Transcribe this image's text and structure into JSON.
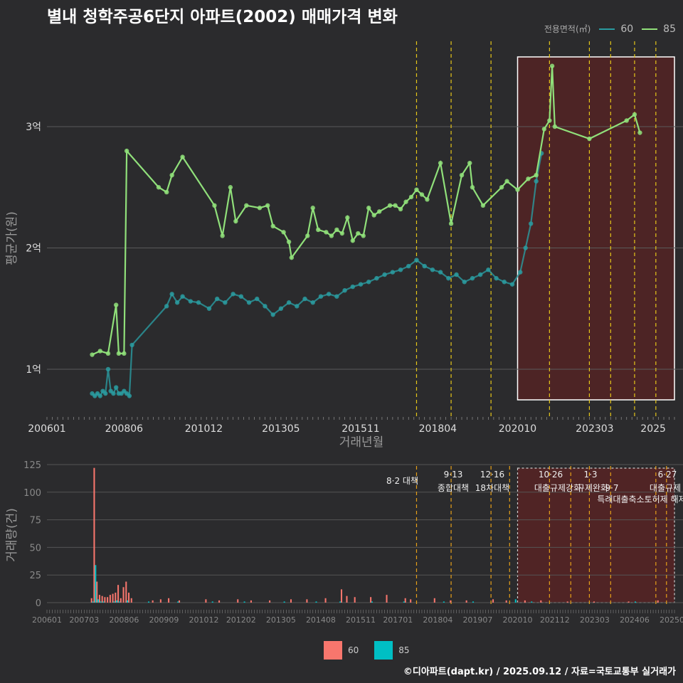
{
  "title": "별내 청학주공6단지 아파트(2002) 매매가격 변화",
  "legend_top": {
    "title": "전용면적(㎡)",
    "items": [
      {
        "label": "60",
        "color": "#2a9ba0"
      },
      {
        "label": "85",
        "color": "#90e07a"
      }
    ]
  },
  "legend_bottom": {
    "items": [
      {
        "label": "60",
        "color": "#f8766d"
      },
      {
        "label": "85",
        "color": "#00bfc4"
      }
    ]
  },
  "credit": "©디아파트(dapt.kr) / 2025.09.12 / 자료=국토교통부 실거래가",
  "chart_data": [
    {
      "type": "line",
      "xlabel": "거래년월",
      "ylabel": "평균가(원)",
      "x_range": [
        "2006-01",
        "2025-09"
      ],
      "ylim": [
        0.65,
        3.65
      ],
      "y_ticks": [
        {
          "v": 1,
          "label": "1억"
        },
        {
          "v": 2,
          "label": "2억"
        },
        {
          "v": 3,
          "label": "3억"
        }
      ],
      "x_ticks": [
        "200601",
        "200806",
        "201012",
        "201305",
        "201511",
        "201804",
        "202010",
        "202303",
        "2025"
      ],
      "policy_lines": [
        "2017-08",
        "2018-09",
        "2019-12",
        "2021-10",
        "2023-01",
        "2023-09",
        "2024-06",
        "2025-02"
      ],
      "highlight_box": {
        "from": "2020-10",
        "to": "2025-09"
      },
      "series": [
        {
          "name": "60",
          "color": "#2a9ba0",
          "points": [
            [
              "2007-06",
              0.8
            ],
            [
              "2007-07",
              0.78
            ],
            [
              "2007-08",
              0.8
            ],
            [
              "2007-09",
              0.78
            ],
            [
              "2007-10",
              0.82
            ],
            [
              "2007-11",
              0.8
            ],
            [
              "2007-12",
              1.0
            ],
            [
              "2008-01",
              0.82
            ],
            [
              "2008-02",
              0.8
            ],
            [
              "2008-03",
              0.85
            ],
            [
              "2008-04",
              0.8
            ],
            [
              "2008-05",
              0.8
            ],
            [
              "2008-06",
              0.82
            ],
            [
              "2008-07",
              0.8
            ],
            [
              "2008-08",
              0.78
            ],
            [
              "2008-09",
              1.2
            ],
            [
              "2009-10",
              1.52
            ],
            [
              "2009-12",
              1.62
            ],
            [
              "2010-02",
              1.55
            ],
            [
              "2010-04",
              1.6
            ],
            [
              "2010-07",
              1.56
            ],
            [
              "2010-10",
              1.55
            ],
            [
              "2011-02",
              1.5
            ],
            [
              "2011-05",
              1.58
            ],
            [
              "2011-08",
              1.55
            ],
            [
              "2011-11",
              1.62
            ],
            [
              "2012-02",
              1.6
            ],
            [
              "2012-05",
              1.55
            ],
            [
              "2012-08",
              1.58
            ],
            [
              "2012-11",
              1.52
            ],
            [
              "2013-02",
              1.45
            ],
            [
              "2013-05",
              1.5
            ],
            [
              "2013-08",
              1.55
            ],
            [
              "2013-11",
              1.52
            ],
            [
              "2014-02",
              1.58
            ],
            [
              "2014-05",
              1.55
            ],
            [
              "2014-08",
              1.6
            ],
            [
              "2014-11",
              1.62
            ],
            [
              "2015-02",
              1.6
            ],
            [
              "2015-05",
              1.65
            ],
            [
              "2015-08",
              1.68
            ],
            [
              "2015-11",
              1.7
            ],
            [
              "2016-02",
              1.72
            ],
            [
              "2016-05",
              1.75
            ],
            [
              "2016-08",
              1.78
            ],
            [
              "2016-11",
              1.8
            ],
            [
              "2017-02",
              1.82
            ],
            [
              "2017-05",
              1.85
            ],
            [
              "2017-08",
              1.9
            ],
            [
              "2017-11",
              1.85
            ],
            [
              "2018-02",
              1.82
            ],
            [
              "2018-05",
              1.8
            ],
            [
              "2018-08",
              1.75
            ],
            [
              "2018-11",
              1.78
            ],
            [
              "2019-02",
              1.72
            ],
            [
              "2019-05",
              1.75
            ],
            [
              "2019-08",
              1.78
            ],
            [
              "2019-11",
              1.82
            ],
            [
              "2020-02",
              1.75
            ],
            [
              "2020-05",
              1.72
            ],
            [
              "2020-08",
              1.7
            ],
            [
              "2020-11",
              1.8
            ],
            [
              "2021-01",
              2.0
            ],
            [
              "2021-03",
              2.2
            ],
            [
              "2021-05",
              2.55
            ],
            [
              "2021-07",
              2.78
            ]
          ]
        },
        {
          "name": "85",
          "color": "#90e07a",
          "points": [
            [
              "2007-06",
              1.12
            ],
            [
              "2007-09",
              1.15
            ],
            [
              "2007-12",
              1.13
            ],
            [
              "2008-03",
              1.53
            ],
            [
              "2008-04",
              1.13
            ],
            [
              "2008-06",
              1.13
            ],
            [
              "2008-07",
              2.8
            ],
            [
              "2009-07",
              2.5
            ],
            [
              "2009-10",
              2.46
            ],
            [
              "2009-12",
              2.6
            ],
            [
              "2010-04",
              2.75
            ],
            [
              "2011-04",
              2.35
            ],
            [
              "2011-07",
              2.1
            ],
            [
              "2011-10",
              2.5
            ],
            [
              "2011-12",
              2.22
            ],
            [
              "2012-04",
              2.35
            ],
            [
              "2012-09",
              2.33
            ],
            [
              "2012-12",
              2.35
            ],
            [
              "2013-02",
              2.18
            ],
            [
              "2013-06",
              2.13
            ],
            [
              "2013-08",
              2.05
            ],
            [
              "2013-09",
              1.92
            ],
            [
              "2014-03",
              2.1
            ],
            [
              "2014-05",
              2.33
            ],
            [
              "2014-07",
              2.15
            ],
            [
              "2014-10",
              2.13
            ],
            [
              "2014-12",
              2.1
            ],
            [
              "2015-02",
              2.15
            ],
            [
              "2015-04",
              2.12
            ],
            [
              "2015-06",
              2.25
            ],
            [
              "2015-08",
              2.06
            ],
            [
              "2015-10",
              2.12
            ],
            [
              "2015-12",
              2.1
            ],
            [
              "2016-02",
              2.33
            ],
            [
              "2016-04",
              2.27
            ],
            [
              "2016-06",
              2.3
            ],
            [
              "2016-10",
              2.35
            ],
            [
              "2016-12",
              2.35
            ],
            [
              "2017-02",
              2.32
            ],
            [
              "2017-04",
              2.38
            ],
            [
              "2017-06",
              2.42
            ],
            [
              "2017-08",
              2.48
            ],
            [
              "2017-10",
              2.44
            ],
            [
              "2017-12",
              2.4
            ],
            [
              "2018-05",
              2.7
            ],
            [
              "2018-09",
              2.2
            ],
            [
              "2019-01",
              2.6
            ],
            [
              "2019-04",
              2.7
            ],
            [
              "2019-05",
              2.5
            ],
            [
              "2019-09",
              2.35
            ],
            [
              "2020-04",
              2.5
            ],
            [
              "2020-06",
              2.55
            ],
            [
              "2020-10",
              2.48
            ],
            [
              "2021-02",
              2.57
            ],
            [
              "2021-05",
              2.6
            ],
            [
              "2021-08",
              2.98
            ],
            [
              "2021-10",
              3.05
            ],
            [
              "2021-11",
              3.5
            ],
            [
              "2021-12",
              3.0
            ],
            [
              "2023-01",
              2.9
            ],
            [
              "2024-03",
              3.05
            ],
            [
              "2024-06",
              3.1
            ],
            [
              "2024-08",
              2.95
            ]
          ]
        }
      ]
    },
    {
      "type": "bar",
      "ylabel": "거래량(건)",
      "ylim": [
        0,
        125
      ],
      "y_ticks": [
        0,
        25,
        50,
        75,
        100,
        125
      ],
      "x_ticks": [
        "200601",
        "200703",
        "200806",
        "200909",
        "201012",
        "201202",
        "201305",
        "201408",
        "201511",
        "201701",
        "201804",
        "201907",
        "202010",
        "202112",
        "202303",
        "202406",
        "202509"
      ],
      "policy_lines": [
        "2017-08",
        "2018-09",
        "2019-12",
        "2020-07",
        "2021-10",
        "2022-06",
        "2023-01",
        "2023-09",
        "2025-02",
        "2025-06"
      ],
      "annotations": [
        "8·2 대책",
        "9·13",
        "종합대책",
        "12·16",
        "18차대책",
        "10·26",
        "대출규제강화",
        "1·3",
        "규제완화",
        "9·7",
        "특례대출축소토허제 해제",
        "6·27",
        "대출규제"
      ],
      "highlight_box": {
        "from": "2020-10",
        "to": "2025-09"
      },
      "series": [
        {
          "name": "60",
          "color": "#f8766d",
          "points": [
            [
              "2007-06",
              4
            ],
            [
              "2007-07",
              122
            ],
            [
              "2007-08",
              19
            ],
            [
              "2007-09",
              7
            ],
            [
              "2007-10",
              6
            ],
            [
              "2007-11",
              5
            ],
            [
              "2007-12",
              5
            ],
            [
              "2008-01",
              7
            ],
            [
              "2008-02",
              8
            ],
            [
              "2008-03",
              9
            ],
            [
              "2008-04",
              16
            ],
            [
              "2008-05",
              4
            ],
            [
              "2008-06",
              14
            ],
            [
              "2008-07",
              19
            ],
            [
              "2008-08",
              9
            ],
            [
              "2008-09",
              4
            ],
            [
              "2009-05",
              2
            ],
            [
              "2009-08",
              3
            ],
            [
              "2009-11",
              4
            ],
            [
              "2010-03",
              2
            ],
            [
              "2011-01",
              3
            ],
            [
              "2011-06",
              2
            ],
            [
              "2012-01",
              3
            ],
            [
              "2012-06",
              2
            ],
            [
              "2013-01",
              2
            ],
            [
              "2013-09",
              3
            ],
            [
              "2014-03",
              3
            ],
            [
              "2014-10",
              4
            ],
            [
              "2015-04",
              12
            ],
            [
              "2015-06",
              6
            ],
            [
              "2015-09",
              5
            ],
            [
              "2016-03",
              5
            ],
            [
              "2016-09",
              7
            ],
            [
              "2017-04",
              4
            ],
            [
              "2017-06",
              3
            ],
            [
              "2018-03",
              4
            ],
            [
              "2018-09",
              2
            ],
            [
              "2019-03",
              2
            ],
            [
              "2020-01",
              3
            ],
            [
              "2020-06",
              2
            ],
            [
              "2021-01",
              2
            ],
            [
              "2021-07",
              2
            ],
            [
              "2022-05",
              1
            ],
            [
              "2023-03",
              1
            ],
            [
              "2024-04",
              1
            ],
            [
              "2025-03",
              2
            ]
          ]
        },
        {
          "name": "85",
          "color": "#00bfc4",
          "points": [
            [
              "2007-06",
              1
            ],
            [
              "2007-07",
              34
            ],
            [
              "2007-08",
              3
            ],
            [
              "2007-09",
              1
            ],
            [
              "2007-10",
              1
            ],
            [
              "2008-02",
              1
            ],
            [
              "2008-03",
              2
            ],
            [
              "2008-04",
              1
            ],
            [
              "2008-07",
              2
            ],
            [
              "2009-03",
              1
            ],
            [
              "2010-02",
              1
            ],
            [
              "2011-03",
              1
            ],
            [
              "2012-03",
              1
            ],
            [
              "2013-06",
              1
            ],
            [
              "2014-06",
              1
            ],
            [
              "2015-03",
              1
            ],
            [
              "2016-03",
              1
            ],
            [
              "2017-03",
              1
            ],
            [
              "2018-06",
              1
            ],
            [
              "2019-05",
              1
            ],
            [
              "2020-09",
              3
            ],
            [
              "2021-03",
              1
            ],
            [
              "2024-06",
              1
            ]
          ]
        }
      ]
    }
  ]
}
